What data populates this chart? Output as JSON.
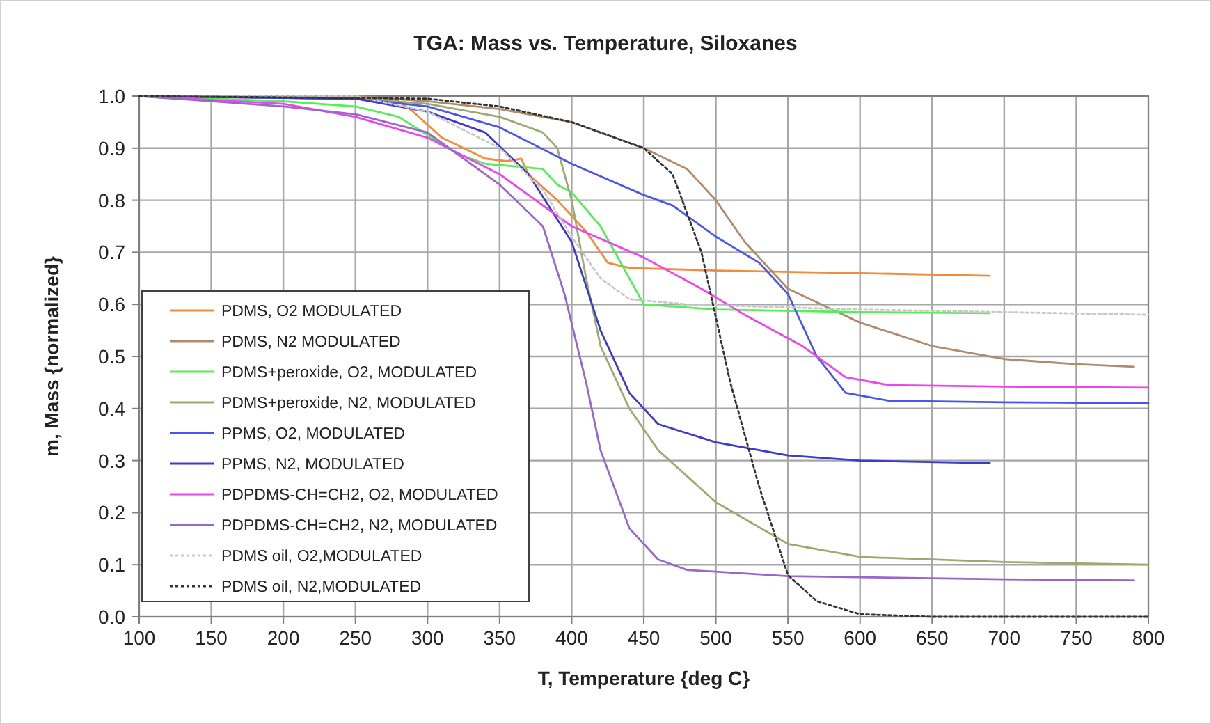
{
  "chart_data": {
    "type": "line",
    "title": "TGA: Mass vs. Temperature,  Siloxanes",
    "xlabel": "T, Temperature {deg C}",
    "ylabel": "m, Mass {normalized}",
    "xlim": [
      100,
      800
    ],
    "xticks": [
      100,
      150,
      200,
      250,
      300,
      350,
      400,
      450,
      500,
      550,
      600,
      650,
      700,
      750,
      800
    ],
    "ylim": [
      0,
      1
    ],
    "yticks": [
      {
        "value": 0,
        "label": "0.0"
      },
      0.1,
      0.2,
      0.3,
      0.4,
      0.5,
      0.6,
      0.7,
      0.8,
      0.9,
      {
        "value": 1,
        "label": "1.0"
      }
    ],
    "grid": true,
    "legend": "left",
    "marker": "none",
    "series": [
      {
        "name": "PDMS, O2 MODULATED",
        "color": "#f28c3c",
        "x": [
          100,
          250,
          280,
          290,
          310,
          340,
          355,
          365,
          370,
          390,
          410,
          425,
          440,
          500,
          600,
          690
        ],
        "values": [
          1.0,
          0.995,
          0.99,
          0.97,
          0.92,
          0.88,
          0.875,
          0.88,
          0.85,
          0.8,
          0.74,
          0.68,
          0.67,
          0.665,
          0.66,
          0.655
        ]
      },
      {
        "name": "PDMS, N2 MODULATED",
        "color": "#b08a6a",
        "x": [
          100,
          250,
          300,
          350,
          400,
          450,
          480,
          500,
          520,
          550,
          600,
          650,
          700,
          750,
          790
        ],
        "values": [
          1.0,
          1.0,
          0.99,
          0.975,
          0.95,
          0.9,
          0.86,
          0.8,
          0.72,
          0.63,
          0.565,
          0.52,
          0.495,
          0.485,
          0.48
        ]
      },
      {
        "name": "PDMS+peroxide, O2, MODULATED",
        "color": "#55ee55",
        "x": [
          100,
          200,
          250,
          280,
          320,
          340,
          360,
          380,
          390,
          400,
          420,
          440,
          450,
          500,
          600,
          690
        ],
        "values": [
          1.0,
          0.99,
          0.98,
          0.96,
          0.89,
          0.87,
          0.865,
          0.86,
          0.83,
          0.815,
          0.75,
          0.65,
          0.6,
          0.59,
          0.585,
          0.583
        ]
      },
      {
        "name": "PDMS+peroxide, N2, MODULATED",
        "color": "#9aaa70",
        "x": [
          100,
          250,
          300,
          350,
          380,
          390,
          400,
          410,
          420,
          440,
          460,
          500,
          550,
          600,
          700,
          800
        ],
        "values": [
          1.0,
          0.995,
          0.985,
          0.96,
          0.93,
          0.9,
          0.8,
          0.65,
          0.52,
          0.4,
          0.32,
          0.22,
          0.14,
          0.115,
          0.105,
          0.1
        ]
      },
      {
        "name": "PPMS, O2, MODULATED",
        "color": "#4a55ee",
        "x": [
          100,
          250,
          300,
          350,
          400,
          450,
          470,
          480,
          500,
          530,
          550,
          570,
          590,
          620,
          700,
          800
        ],
        "values": [
          1.0,
          0.995,
          0.98,
          0.94,
          0.87,
          0.81,
          0.79,
          0.77,
          0.73,
          0.68,
          0.62,
          0.5,
          0.43,
          0.415,
          0.412,
          0.41
        ]
      },
      {
        "name": "PPMS, N2, MODULATED",
        "color": "#3a3acc",
        "x": [
          100,
          250,
          300,
          340,
          370,
          400,
          420,
          440,
          460,
          500,
          550,
          600,
          690
        ],
        "values": [
          1.0,
          0.995,
          0.97,
          0.93,
          0.85,
          0.72,
          0.55,
          0.43,
          0.37,
          0.335,
          0.31,
          0.3,
          0.295
        ]
      },
      {
        "name": "PDPDMS-CH=CH2, O2, MODULATED",
        "color": "#ee44ee",
        "x": [
          100,
          200,
          250,
          300,
          350,
          400,
          450,
          490,
          520,
          560,
          590,
          620,
          700,
          800
        ],
        "values": [
          1.0,
          0.985,
          0.96,
          0.92,
          0.85,
          0.75,
          0.69,
          0.63,
          0.58,
          0.52,
          0.46,
          0.445,
          0.442,
          0.44
        ]
      },
      {
        "name": "PDPDMS-CH=CH2, N2, MODULATED",
        "color": "#9966cc",
        "x": [
          100,
          200,
          250,
          300,
          350,
          380,
          395,
          410,
          420,
          440,
          460,
          480,
          550,
          700,
          790
        ],
        "values": [
          1.0,
          0.98,
          0.965,
          0.93,
          0.83,
          0.75,
          0.62,
          0.45,
          0.32,
          0.17,
          0.11,
          0.09,
          0.078,
          0.072,
          0.07
        ]
      },
      {
        "name": "PDMS oil, O2,MODULATED",
        "color": "#c8c8c8",
        "line_style": "dotted",
        "x": [
          100,
          250,
          300,
          350,
          380,
          400,
          420,
          440,
          480,
          600,
          800
        ],
        "values": [
          1.0,
          1.0,
          0.97,
          0.9,
          0.82,
          0.73,
          0.65,
          0.61,
          0.6,
          0.59,
          0.58
        ]
      },
      {
        "name": "PDMS oil, N2,MODULATED",
        "color": "#333333",
        "line_style": "dotted",
        "x": [
          100,
          300,
          350,
          400,
          450,
          470,
          490,
          510,
          530,
          550,
          570,
          600,
          650,
          800
        ],
        "values": [
          1.0,
          0.995,
          0.98,
          0.95,
          0.9,
          0.85,
          0.7,
          0.45,
          0.25,
          0.08,
          0.03,
          0.005,
          0,
          0
        ]
      }
    ]
  }
}
